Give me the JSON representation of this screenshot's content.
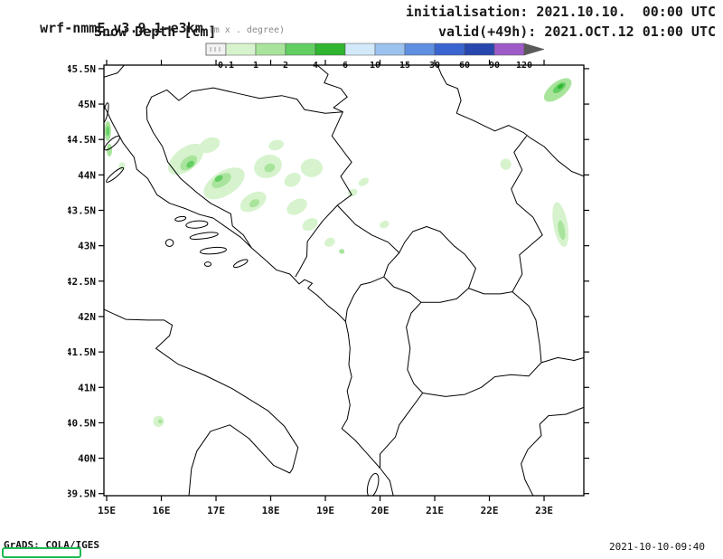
{
  "header": {
    "model": "wrf-nmmE_v3.9.1-e3km",
    "model_note": "(m x . degree)",
    "variable": "Snow Depth [cm]",
    "init_label": "initialisation: 2021.10.10.  00:00 UTC",
    "valid_label": "valid(+49h): 2021.OCT.12 01:00 UTC"
  },
  "footer": {
    "credit": "GrADS: COLA/IGES",
    "timestamp": "2021-10-10-09:40"
  },
  "colorbar": {
    "values": [
      "0.1",
      "1",
      "2",
      "4",
      "6",
      "10",
      "15",
      "30",
      "60",
      "90",
      "120"
    ],
    "segment_colors": [
      "#d6f3cd",
      "#a8e49b",
      "#63cf63",
      "#2fb52f",
      "#d2e9fa",
      "#9cc2f0",
      "#5f8fe0",
      "#3a64d0",
      "#2747ae",
      "#9e5bc8"
    ],
    "under_color": "#f2f2f2",
    "over_color": "#5a5a5a"
  },
  "map": {
    "lat_ticks": [
      {
        "label": "45.5N",
        "value": 45.5
      },
      {
        "label": "45N",
        "value": 45
      },
      {
        "label": "44.5N",
        "value": 44.5
      },
      {
        "label": "44N",
        "value": 44
      },
      {
        "label": "43.5N",
        "value": 43.5
      },
      {
        "label": "43N",
        "value": 43
      },
      {
        "label": "42.5N",
        "value": 42.5
      },
      {
        "label": "42N",
        "value": 42
      },
      {
        "label": "41.5N",
        "value": 41.5
      },
      {
        "label": "41N",
        "value": 41
      },
      {
        "label": "40.5N",
        "value": 40.5
      },
      {
        "label": "40N",
        "value": 40
      },
      {
        "label": "39.5N",
        "value": 39.5
      }
    ],
    "lon_ticks": [
      {
        "label": "15E",
        "value": 15
      },
      {
        "label": "16E",
        "value": 16
      },
      {
        "label": "17E",
        "value": 17
      },
      {
        "label": "18E",
        "value": 18
      },
      {
        "label": "19E",
        "value": 19
      },
      {
        "label": "20E",
        "value": 20
      },
      {
        "label": "21E",
        "value": 21
      },
      {
        "label": "22E",
        "value": 22
      },
      {
        "label": "23E",
        "value": 23
      }
    ],
    "lat_range": [
      39.5,
      45.5
    ],
    "lon_range": [
      15,
      23.7
    ]
  },
  "snow_patches": [
    {
      "lon": 22.3,
      "lat": 44.15,
      "rx": 0.1,
      "ry": 0.08,
      "rot": 0,
      "level": 1
    },
    {
      "lon": 23.3,
      "lat": 43.3,
      "rx": 0.13,
      "ry": 0.32,
      "rot": -10,
      "level": 1
    },
    {
      "lon": 23.32,
      "lat": 43.22,
      "rx": 0.06,
      "ry": 0.14,
      "rot": -10,
      "level": 2
    },
    {
      "lon": 23.25,
      "lat": 45.2,
      "rx": 0.3,
      "ry": 0.11,
      "rot": -38,
      "level": 2
    },
    {
      "lon": 23.28,
      "lat": 45.23,
      "rx": 0.14,
      "ry": 0.05,
      "rot": -38,
      "level": 3
    },
    {
      "lon": 23.3,
      "lat": 45.25,
      "rx": 0.06,
      "ry": 0.025,
      "rot": -38,
      "level": 4
    },
    {
      "lon": 15.02,
      "lat": 44.62,
      "rx": 0.06,
      "ry": 0.14,
      "rot": 0,
      "level": 2
    },
    {
      "lon": 15.02,
      "lat": 44.62,
      "rx": 0.03,
      "ry": 0.07,
      "rot": 0,
      "level": 3
    },
    {
      "lon": 15.05,
      "lat": 44.35,
      "rx": 0.05,
      "ry": 0.09,
      "rot": 0,
      "level": 2
    },
    {
      "lon": 15.28,
      "lat": 44.12,
      "rx": 0.06,
      "ry": 0.06,
      "rot": 0,
      "level": 1
    },
    {
      "lon": 16.45,
      "lat": 44.22,
      "rx": 0.38,
      "ry": 0.16,
      "rot": -38,
      "level": 1
    },
    {
      "lon": 16.5,
      "lat": 44.17,
      "rx": 0.18,
      "ry": 0.08,
      "rot": -38,
      "level": 2
    },
    {
      "lon": 16.53,
      "lat": 44.15,
      "rx": 0.08,
      "ry": 0.04,
      "rot": -38,
      "level": 3
    },
    {
      "lon": 16.88,
      "lat": 44.42,
      "rx": 0.2,
      "ry": 0.1,
      "rot": -25,
      "level": 1
    },
    {
      "lon": 17.15,
      "lat": 43.88,
      "rx": 0.42,
      "ry": 0.17,
      "rot": -32,
      "level": 1
    },
    {
      "lon": 17.1,
      "lat": 43.92,
      "rx": 0.2,
      "ry": 0.08,
      "rot": -32,
      "level": 2
    },
    {
      "lon": 17.05,
      "lat": 43.95,
      "rx": 0.08,
      "ry": 0.04,
      "rot": -32,
      "level": 3
    },
    {
      "lon": 17.68,
      "lat": 43.62,
      "rx": 0.26,
      "ry": 0.12,
      "rot": -30,
      "level": 1
    },
    {
      "lon": 17.7,
      "lat": 43.6,
      "rx": 0.1,
      "ry": 0.05,
      "rot": -30,
      "level": 2
    },
    {
      "lon": 17.95,
      "lat": 44.12,
      "rx": 0.26,
      "ry": 0.16,
      "rot": -20,
      "level": 1
    },
    {
      "lon": 17.98,
      "lat": 44.1,
      "rx": 0.1,
      "ry": 0.06,
      "rot": -20,
      "level": 2
    },
    {
      "lon": 18.1,
      "lat": 44.42,
      "rx": 0.14,
      "ry": 0.07,
      "rot": -15,
      "level": 1
    },
    {
      "lon": 18.75,
      "lat": 44.1,
      "rx": 0.2,
      "ry": 0.13,
      "rot": 0,
      "level": 1
    },
    {
      "lon": 18.4,
      "lat": 43.93,
      "rx": 0.16,
      "ry": 0.09,
      "rot": -30,
      "level": 1
    },
    {
      "lon": 18.48,
      "lat": 43.55,
      "rx": 0.2,
      "ry": 0.1,
      "rot": -30,
      "level": 1
    },
    {
      "lon": 18.72,
      "lat": 43.3,
      "rx": 0.15,
      "ry": 0.08,
      "rot": -30,
      "level": 1
    },
    {
      "lon": 19.08,
      "lat": 43.05,
      "rx": 0.1,
      "ry": 0.06,
      "rot": -30,
      "level": 1
    },
    {
      "lon": 19.3,
      "lat": 42.92,
      "rx": 0.05,
      "ry": 0.035,
      "rot": 0,
      "level": 2
    },
    {
      "lon": 19.5,
      "lat": 43.75,
      "rx": 0.09,
      "ry": 0.05,
      "rot": -20,
      "level": 1
    },
    {
      "lon": 19.7,
      "lat": 43.9,
      "rx": 0.1,
      "ry": 0.05,
      "rot": -30,
      "level": 1
    },
    {
      "lon": 20.08,
      "lat": 43.3,
      "rx": 0.09,
      "ry": 0.05,
      "rot": -20,
      "level": 1
    },
    {
      "lon": 15.95,
      "lat": 40.52,
      "rx": 0.1,
      "ry": 0.08,
      "rot": 0,
      "level": 1
    },
    {
      "lon": 15.98,
      "lat": 40.52,
      "rx": 0.04,
      "ry": 0.03,
      "rot": 0,
      "level": 2
    }
  ]
}
